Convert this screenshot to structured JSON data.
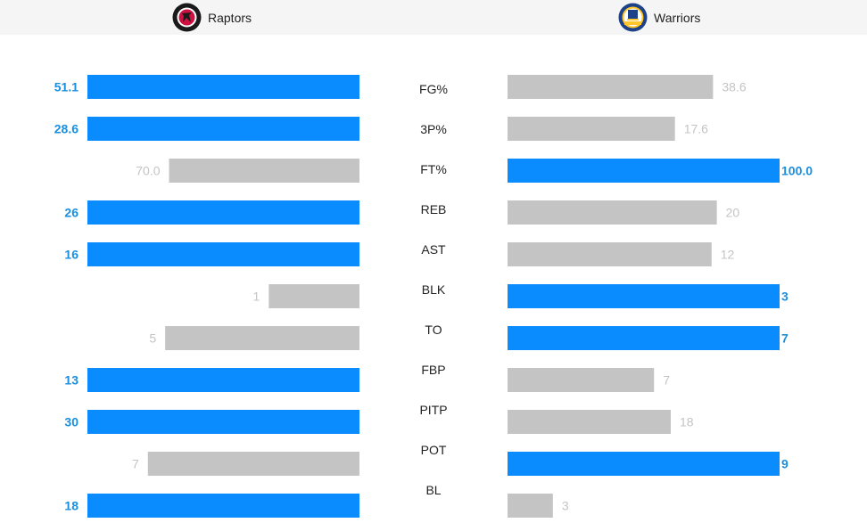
{
  "teams": {
    "left": {
      "name": "Raptors",
      "logo_icon": "raptors-logo-icon",
      "logo_text": "TORONTO RAPTORS"
    },
    "right": {
      "name": "Warriors",
      "logo_icon": "warriors-logo-icon",
      "logo_text": "GOLDEN STATE WARRIORS"
    }
  },
  "colors": {
    "leader": "#0a8cff",
    "trailer": "#c4c4c4",
    "leader_text": "#1a8fe0",
    "trailer_text": "#c4c4c4",
    "label_text": "#222222"
  },
  "chart_data": {
    "type": "bar",
    "orientation": "horizontal-butterfly",
    "categories": [
      "FG%",
      "3P%",
      "FT%",
      "REB",
      "AST",
      "BLK",
      "TO",
      "FBP",
      "PITP",
      "POT",
      "BL"
    ],
    "series": [
      {
        "name": "Raptors",
        "values": [
          51.1,
          28.6,
          70.0,
          26,
          16,
          1,
          5,
          13,
          30,
          7,
          18
        ],
        "labels": [
          "51.1",
          "28.6",
          "70.0",
          "26",
          "16",
          "1",
          "5",
          "13",
          "30",
          "7",
          "18"
        ]
      },
      {
        "name": "Warriors",
        "values": [
          38.6,
          17.6,
          100.0,
          20,
          12,
          3,
          7,
          7,
          18,
          9,
          3
        ],
        "labels": [
          "38.6",
          "17.6",
          "100.0",
          "20",
          "12",
          "3",
          "7",
          "7",
          "18",
          "9",
          "3"
        ]
      }
    ],
    "highlight": [
      "left",
      "left",
      "right",
      "left",
      "left",
      "right",
      "right",
      "left",
      "left",
      "right",
      "left"
    ]
  }
}
